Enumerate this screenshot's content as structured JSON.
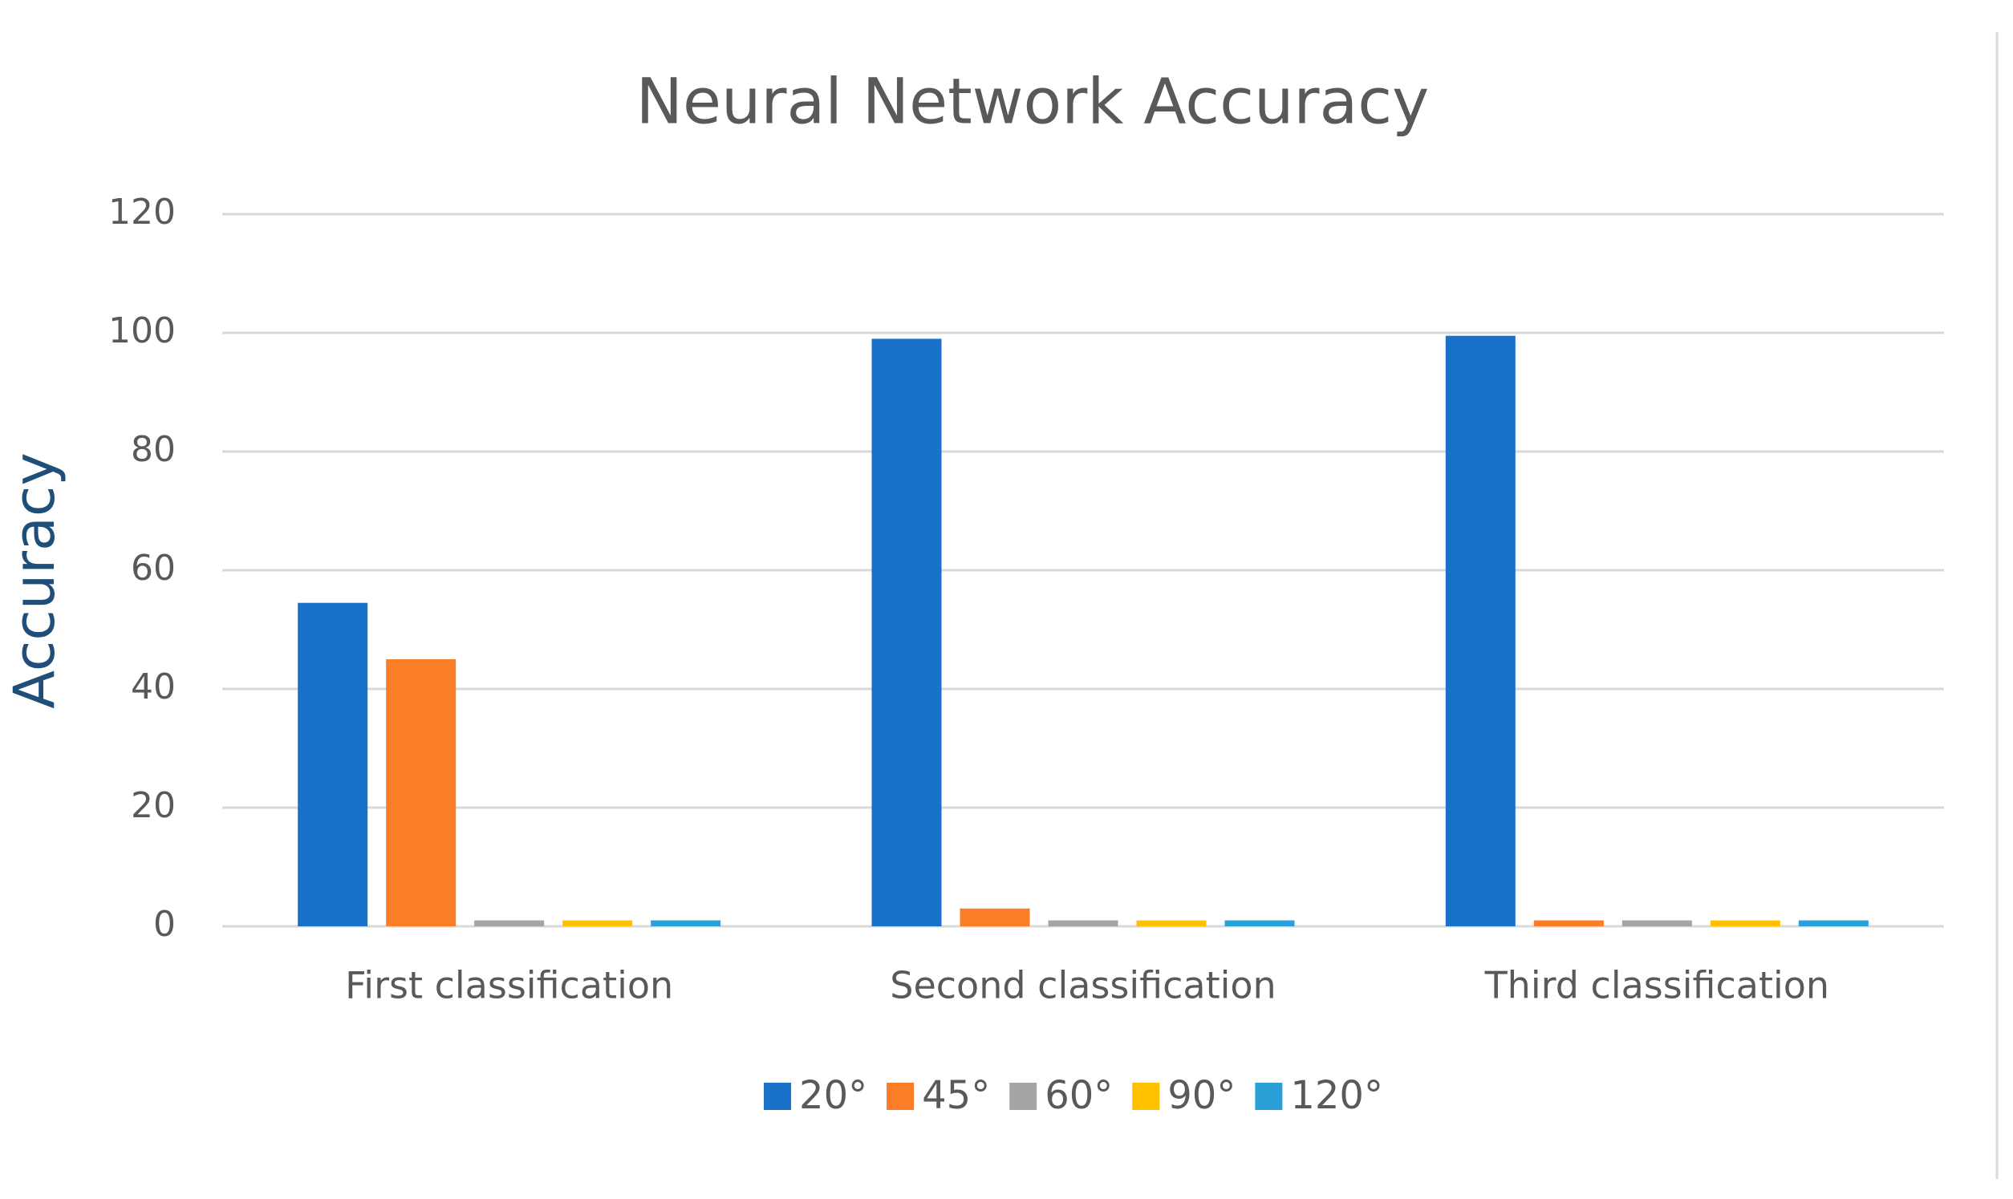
{
  "chart_data": {
    "type": "bar",
    "title": "Neural Network Accuracy",
    "y_label": "Accuracy",
    "categories": [
      "First classification",
      "Second classification",
      "Third classification"
    ],
    "series": [
      {
        "name": "20°",
        "color": "#1a71c9",
        "values": [
          54.5,
          99,
          99.5
        ]
      },
      {
        "name": "45°",
        "color": "#fb7d27",
        "values": [
          45,
          3,
          1
        ]
      },
      {
        "name": "60°",
        "color": "#a5a5a5",
        "values": [
          1,
          1,
          1
        ]
      },
      {
        "name": "90°",
        "color": "#ffc000",
        "values": [
          1,
          1,
          1
        ]
      },
      {
        "name": "120°",
        "color": "#2a9fd8",
        "values": [
          1,
          1,
          1
        ]
      }
    ],
    "ylim": [
      0,
      120
    ],
    "yticks": [
      0,
      20,
      40,
      60,
      80,
      100,
      120
    ],
    "grid": true,
    "legend": "bottom"
  }
}
